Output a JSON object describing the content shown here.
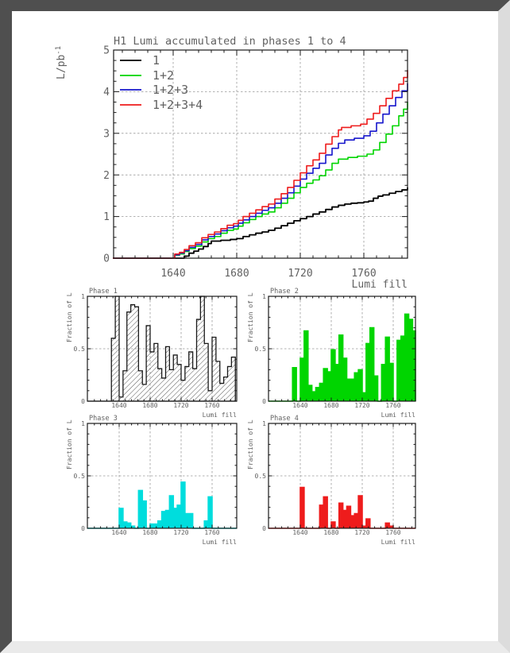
{
  "page": {
    "frame_dark": "#4f4f4f",
    "frame_right": "#dcdcdc",
    "frame_bottom": "#eaeaea",
    "background": "#ffffff"
  },
  "colors": {
    "black": "#000000",
    "green": "#00d500",
    "blue": "#1616cc",
    "red": "#ee1c1c",
    "cyan": "#00dddd",
    "axis": "#1a1a1a",
    "grid": "#9a9a9a",
    "text": "#616161"
  },
  "chart_data": [
    {
      "type": "line",
      "title": "H1 Lumi accumulated in phases 1 to 4",
      "xlabel": "Lumi fill",
      "ylabel": "L/pb",
      "ylabel_sup": "-1",
      "xlim": [
        1602,
        1788
      ],
      "ylim": [
        0,
        5
      ],
      "xticks": [
        1640,
        1680,
        1720,
        1760
      ],
      "yticks": [
        0,
        1,
        2,
        3,
        4,
        5
      ],
      "grid": "dashed",
      "legend_position": "top-left",
      "series": [
        {
          "name": "1",
          "color_key": "black",
          "points": [
            [
              1602,
              0
            ],
            [
              1644,
              0
            ],
            [
              1647,
              0.05
            ],
            [
              1650,
              0.12
            ],
            [
              1653,
              0.17
            ],
            [
              1656,
              0.22
            ],
            [
              1659,
              0.28
            ],
            [
              1662,
              0.35
            ],
            [
              1664,
              0.41
            ],
            [
              1670,
              0.43
            ],
            [
              1676,
              0.45
            ],
            [
              1680,
              0.47
            ],
            [
              1684,
              0.52
            ],
            [
              1688,
              0.56
            ],
            [
              1692,
              0.6
            ],
            [
              1696,
              0.63
            ],
            [
              1700,
              0.67
            ],
            [
              1704,
              0.72
            ],
            [
              1708,
              0.78
            ],
            [
              1712,
              0.84
            ],
            [
              1716,
              0.9
            ],
            [
              1720,
              0.95
            ],
            [
              1724,
              1.0
            ],
            [
              1728,
              1.06
            ],
            [
              1732,
              1.11
            ],
            [
              1736,
              1.17
            ],
            [
              1740,
              1.23
            ],
            [
              1744,
              1.27
            ],
            [
              1748,
              1.3
            ],
            [
              1752,
              1.32
            ],
            [
              1756,
              1.33
            ],
            [
              1760,
              1.35
            ],
            [
              1763,
              1.37
            ],
            [
              1766,
              1.44
            ],
            [
              1769,
              1.49
            ],
            [
              1772,
              1.52
            ],
            [
              1776,
              1.56
            ],
            [
              1780,
              1.6
            ],
            [
              1784,
              1.64
            ],
            [
              1788,
              1.7
            ]
          ]
        },
        {
          "name": "1+2",
          "color_key": "green",
          "points": [
            [
              1602,
              0
            ],
            [
              1639,
              0
            ],
            [
              1641,
              0.07
            ],
            [
              1644,
              0.1
            ],
            [
              1647,
              0.16
            ],
            [
              1650,
              0.23
            ],
            [
              1654,
              0.29
            ],
            [
              1658,
              0.39
            ],
            [
              1662,
              0.47
            ],
            [
              1666,
              0.52
            ],
            [
              1670,
              0.6
            ],
            [
              1674,
              0.67
            ],
            [
              1678,
              0.7
            ],
            [
              1681,
              0.77
            ],
            [
              1684,
              0.85
            ],
            [
              1688,
              0.93
            ],
            [
              1692,
              1.0
            ],
            [
              1696,
              1.06
            ],
            [
              1700,
              1.11
            ],
            [
              1704,
              1.21
            ],
            [
              1708,
              1.32
            ],
            [
              1712,
              1.44
            ],
            [
              1716,
              1.57
            ],
            [
              1720,
              1.7
            ],
            [
              1724,
              1.8
            ],
            [
              1728,
              1.88
            ],
            [
              1732,
              1.98
            ],
            [
              1736,
              2.12
            ],
            [
              1740,
              2.28
            ],
            [
              1744,
              2.38
            ],
            [
              1750,
              2.42
            ],
            [
              1756,
              2.45
            ],
            [
              1762,
              2.5
            ],
            [
              1766,
              2.6
            ],
            [
              1770,
              2.78
            ],
            [
              1774,
              2.98
            ],
            [
              1778,
              3.18
            ],
            [
              1782,
              3.42
            ],
            [
              1785,
              3.58
            ],
            [
              1788,
              3.76
            ]
          ]
        },
        {
          "name": "1+2+3",
          "color_key": "blue",
          "points": [
            [
              1602,
              0
            ],
            [
              1639,
              0
            ],
            [
              1641,
              0.08
            ],
            [
              1644,
              0.12
            ],
            [
              1647,
              0.18
            ],
            [
              1650,
              0.26
            ],
            [
              1654,
              0.33
            ],
            [
              1658,
              0.44
            ],
            [
              1662,
              0.52
            ],
            [
              1666,
              0.58
            ],
            [
              1670,
              0.66
            ],
            [
              1674,
              0.73
            ],
            [
              1678,
              0.77
            ],
            [
              1681,
              0.84
            ],
            [
              1684,
              0.92
            ],
            [
              1688,
              1.0
            ],
            [
              1692,
              1.08
            ],
            [
              1696,
              1.15
            ],
            [
              1700,
              1.21
            ],
            [
              1704,
              1.32
            ],
            [
              1708,
              1.44
            ],
            [
              1712,
              1.57
            ],
            [
              1716,
              1.73
            ],
            [
              1720,
              1.9
            ],
            [
              1724,
              2.04
            ],
            [
              1728,
              2.16
            ],
            [
              1732,
              2.28
            ],
            [
              1736,
              2.48
            ],
            [
              1740,
              2.64
            ],
            [
              1744,
              2.76
            ],
            [
              1748,
              2.84
            ],
            [
              1754,
              2.88
            ],
            [
              1760,
              2.94
            ],
            [
              1764,
              3.05
            ],
            [
              1768,
              3.25
            ],
            [
              1772,
              3.46
            ],
            [
              1776,
              3.66
            ],
            [
              1780,
              3.86
            ],
            [
              1784,
              4.02
            ],
            [
              1788,
              4.2
            ]
          ]
        },
        {
          "name": "1+2+3+4",
          "color_key": "red",
          "points": [
            [
              1602,
              0
            ],
            [
              1639,
              0
            ],
            [
              1641,
              0.1
            ],
            [
              1644,
              0.14
            ],
            [
              1647,
              0.21
            ],
            [
              1650,
              0.3
            ],
            [
              1654,
              0.37
            ],
            [
              1658,
              0.49
            ],
            [
              1662,
              0.57
            ],
            [
              1666,
              0.63
            ],
            [
              1670,
              0.71
            ],
            [
              1674,
              0.79
            ],
            [
              1678,
              0.83
            ],
            [
              1681,
              0.91
            ],
            [
              1684,
              1.0
            ],
            [
              1688,
              1.08
            ],
            [
              1692,
              1.16
            ],
            [
              1696,
              1.24
            ],
            [
              1700,
              1.3
            ],
            [
              1704,
              1.42
            ],
            [
              1708,
              1.55
            ],
            [
              1712,
              1.7
            ],
            [
              1716,
              1.87
            ],
            [
              1720,
              2.05
            ],
            [
              1724,
              2.22
            ],
            [
              1728,
              2.36
            ],
            [
              1732,
              2.52
            ],
            [
              1736,
              2.74
            ],
            [
              1740,
              2.92
            ],
            [
              1744,
              3.08
            ],
            [
              1746,
              3.14
            ],
            [
              1752,
              3.18
            ],
            [
              1758,
              3.22
            ],
            [
              1762,
              3.34
            ],
            [
              1766,
              3.48
            ],
            [
              1770,
              3.66
            ],
            [
              1774,
              3.84
            ],
            [
              1778,
              4.02
            ],
            [
              1782,
              4.18
            ],
            [
              1785,
              4.34
            ],
            [
              1788,
              4.52
            ]
          ]
        }
      ]
    },
    {
      "type": "bar",
      "title": "Phase 1",
      "xlabel": "Lumi fill",
      "ylabel": "Fraction of L",
      "xlim": [
        1599,
        1792
      ],
      "ylim": [
        0,
        1
      ],
      "xticks": [
        1640,
        1680,
        1720,
        1760
      ],
      "yticks": [
        0,
        0.5,
        1
      ],
      "style": "hatched",
      "bin_start": 1630,
      "bin_width": 5,
      "values": [
        0.6,
        1.0,
        0.04,
        0.29,
        0.85,
        0.92,
        0.9,
        0.29,
        0.16,
        0.72,
        0.47,
        0.55,
        0.31,
        0.22,
        0.52,
        0.3,
        0.44,
        0.35,
        0.2,
        0.33,
        0.47,
        0.31,
        0.78,
        1.0,
        0.55,
        0.1,
        0.61,
        0.38,
        0.17,
        0.23,
        0.33,
        0.42
      ]
    },
    {
      "type": "bar",
      "title": "Phase 2",
      "xlabel": "Lumi fill",
      "ylabel": "Fraction of L",
      "xlim": [
        1599,
        1789
      ],
      "ylim": [
        0,
        1
      ],
      "xticks": [
        1640,
        1680,
        1720,
        1760
      ],
      "yticks": [
        0,
        0.5,
        1
      ],
      "style": "green",
      "bin_start": 1630,
      "bin_width": 5,
      "values": [
        0.32,
        0.0,
        0.41,
        0.67,
        0.15,
        0.09,
        0.13,
        0.17,
        0.31,
        0.28,
        0.49,
        0.35,
        0.63,
        0.41,
        0.21,
        0.21,
        0.27,
        0.3,
        0.08,
        0.55,
        0.7,
        0.24,
        0.0,
        0.35,
        0.61,
        0.36,
        0.0,
        0.58,
        0.62,
        0.83,
        0.78,
        0.67
      ]
    },
    {
      "type": "bar",
      "title": "Phase 3",
      "xlabel": "Lumi fill",
      "ylabel": "Fraction of L",
      "xlim": [
        1599,
        1792
      ],
      "ylim": [
        0,
        1
      ],
      "xticks": [
        1640,
        1680,
        1720,
        1760
      ],
      "yticks": [
        0,
        0.5,
        1
      ],
      "style": "cyan",
      "bin_start": 1630,
      "bin_width": 5,
      "values": [
        0.0,
        0.0,
        0.19,
        0.06,
        0.05,
        0.02,
        0.0,
        0.36,
        0.26,
        0.0,
        0.04,
        0.04,
        0.07,
        0.16,
        0.17,
        0.31,
        0.19,
        0.22,
        0.44,
        0.14,
        0.14,
        0.0,
        0.0,
        0.0,
        0.07,
        0.3,
        0.0,
        0.0,
        0.0,
        0.0,
        0.0,
        0.0
      ]
    },
    {
      "type": "bar",
      "title": "Phase 4",
      "xlabel": "Lumi fill",
      "ylabel": "Fraction of L",
      "xlim": [
        1599,
        1789
      ],
      "ylim": [
        0,
        1
      ],
      "xticks": [
        1640,
        1680,
        1720,
        1760
      ],
      "yticks": [
        0,
        0.5,
        1
      ],
      "style": "red",
      "bin_start": 1630,
      "bin_width": 5,
      "values": [
        0.0,
        0.0,
        0.39,
        0.0,
        0.0,
        0.0,
        0.0,
        0.22,
        0.3,
        0.0,
        0.06,
        0.0,
        0.24,
        0.17,
        0.21,
        0.12,
        0.14,
        0.31,
        0.02,
        0.09,
        0.0,
        0.0,
        0.0,
        0.0,
        0.05,
        0.02,
        0.0,
        0.0,
        0.0,
        0.0,
        0.0,
        0.0
      ]
    }
  ]
}
